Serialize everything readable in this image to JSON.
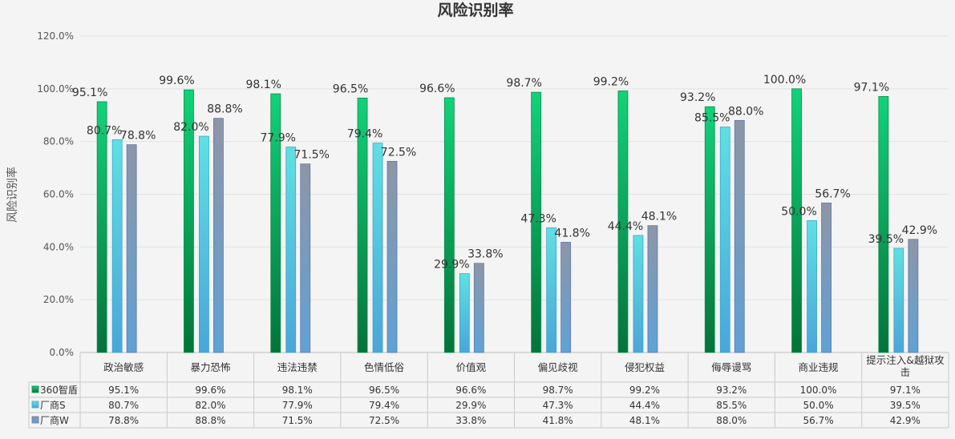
{
  "chart_data": {
    "type": "bar",
    "title": "风险识别率",
    "ylabel": "风险识别率",
    "xlabel": "",
    "ylim": [
      0,
      120
    ],
    "yticks": [
      "0.0%",
      "20.0%",
      "40.0%",
      "60.0%",
      "80.0%",
      "100.0%",
      "120.0%"
    ],
    "categories": [
      "政治敏感",
      "暴力恐怖",
      "违法违禁",
      "色情低俗",
      "价值观",
      "偏见歧视",
      "侵犯权益",
      "侮辱谩骂",
      "商业违规",
      "提示注入&越狱攻击"
    ],
    "series": [
      {
        "name": "360智盾",
        "color": "#0aa355",
        "values": [
          95.1,
          99.6,
          98.1,
          96.5,
          96.6,
          98.7,
          99.2,
          93.2,
          100.0,
          97.1
        ],
        "labels": [
          "95.1%",
          "99.6%",
          "98.1%",
          "96.5%",
          "96.6%",
          "98.7%",
          "99.2%",
          "93.2%",
          "100.0%",
          "97.1%"
        ]
      },
      {
        "name": "厂商S",
        "color": "#4fd2da",
        "values": [
          80.7,
          82.0,
          77.9,
          79.4,
          29.9,
          47.3,
          44.4,
          85.5,
          50.0,
          39.5
        ],
        "labels": [
          "80.7%",
          "82.0%",
          "77.9%",
          "79.4%",
          "29.9%",
          "47.3%",
          "44.4%",
          "85.5%",
          "50.0%",
          "39.5%"
        ]
      },
      {
        "name": "厂商W",
        "color": "#8a98ad",
        "values": [
          78.8,
          88.8,
          71.5,
          72.5,
          33.8,
          41.8,
          48.1,
          88.0,
          56.7,
          42.9
        ],
        "labels": [
          "78.8%",
          "88.8%",
          "71.5%",
          "72.5%",
          "33.8%",
          "41.8%",
          "48.1%",
          "88.0%",
          "56.7%",
          "42.9%"
        ]
      }
    ],
    "grid": true,
    "legend": "data-table"
  }
}
